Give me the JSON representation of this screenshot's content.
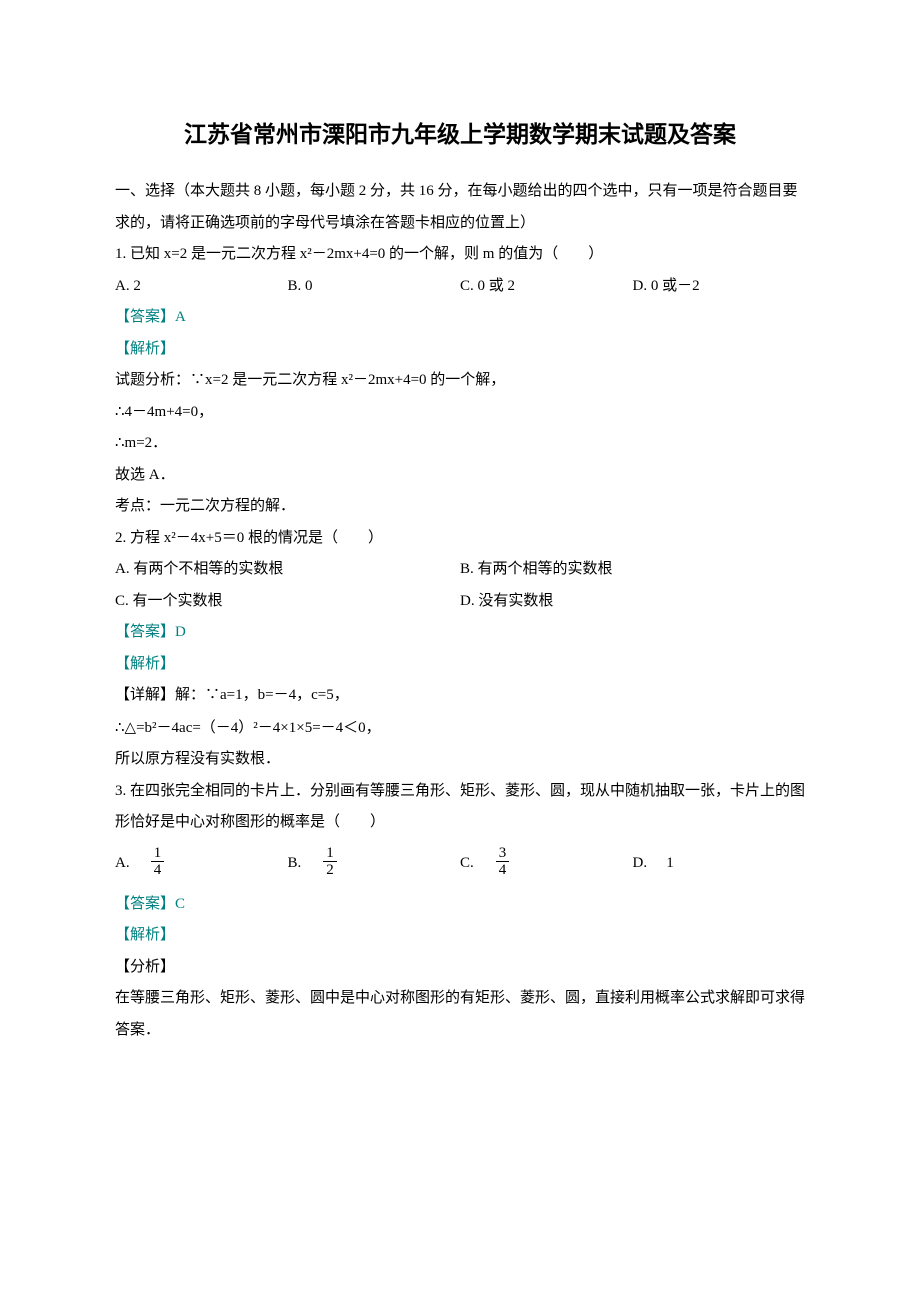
{
  "title": "江苏省常州市溧阳市九年级上学期数学期末试题及答案",
  "section_intro": "一、选择（本大题共 8 小题，每小题 2 分，共 16 分，在每小题给出的四个选中，只有一项是符合题目要求的，请将正确选项前的字母代号填涂在答题卡相应的位置上）",
  "labels": {
    "answer_prefix": "【答案】",
    "analysis": "【解析】",
    "detail": "【详解】",
    "fenxi": "【分析】"
  },
  "q1": {
    "stem": "1. 已知 x=2 是一元二次方程 x²－2mx+4=0 的一个解，则 m 的值为（　　）",
    "optA_label": "A.",
    "optA": "2",
    "optB_label": "B.",
    "optB": "0",
    "optC_label": "C.",
    "optC": "0 或 2",
    "optD_label": "D.",
    "optD": "0 或－2",
    "answer": "A",
    "sol1": "试题分析：∵x=2 是一元二次方程 x²－2mx+4=0 的一个解，",
    "sol2": "∴4－4m+4=0，",
    "sol3": "∴m=2．",
    "sol4": "故选 A．",
    "sol5": "考点：一元二次方程的解．"
  },
  "q2": {
    "stem": "2. 方程 x²－4x+5＝0 根的情况是（　　）",
    "optA": "A. 有两个不相等的实数根",
    "optB": "B. 有两个相等的实数根",
    "optC": "C. 有一个实数根",
    "optD": "D. 没有实数根",
    "answer": "D",
    "sol1": "解：∵a=1，b=－4，c=5，",
    "sol2": "∴△=b²－4ac=（－4）²－4×1×5=－4＜0，",
    "sol3": "所以原方程没有实数根．"
  },
  "q3": {
    "stem": "3. 在四张完全相同的卡片上．分别画有等腰三角形、矩形、菱形、圆，现从中随机抽取一张，卡片上的图形恰好是中心对称图形的概率是（　　）",
    "optA_label": "A.",
    "optA_num": "1",
    "optA_den": "4",
    "optB_label": "B.",
    "optB_num": "1",
    "optB_den": "2",
    "optC_label": "C.",
    "optC_num": "3",
    "optC_den": "4",
    "optD_label": "D.",
    "optD": "1",
    "answer": "C",
    "sol1": "在等腰三角形、矩形、菱形、圆中是中心对称图形的有矩形、菱形、圆，直接利用概率公式求解即可求得答案．"
  }
}
